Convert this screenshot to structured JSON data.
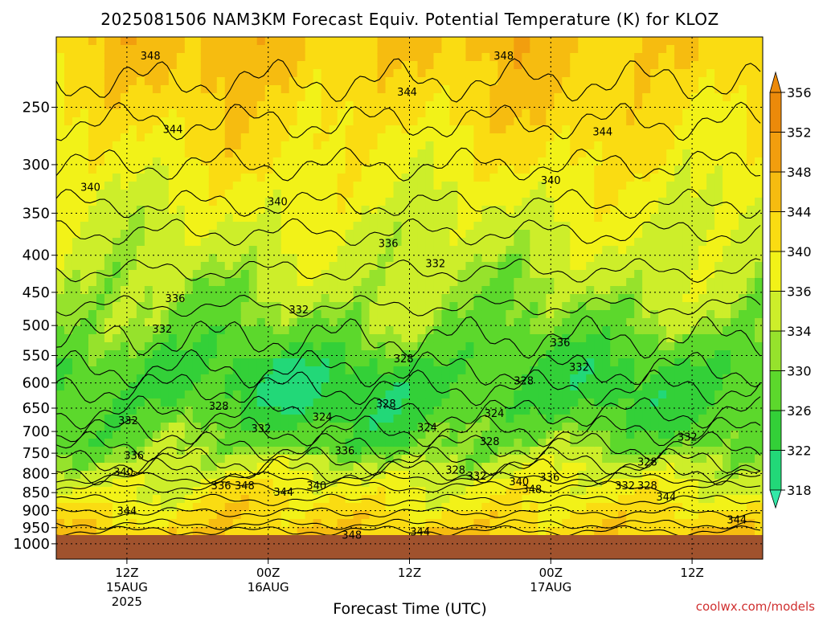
{
  "chart_data": {
    "type": "heatmap",
    "title": "2025081506 NAM3KM Forecast Equiv. Potential Temperature (K) for KLOZ",
    "xlabel": "Forecast Time (UTC)",
    "ylabel": "",
    "y_scale": "log",
    "y_inverted": true,
    "ylim": [
      1050,
      200
    ],
    "y_ticks": [
      250,
      300,
      350,
      400,
      450,
      500,
      550,
      600,
      650,
      700,
      750,
      800,
      850,
      900,
      950,
      1000
    ],
    "x_ticks": [
      {
        "hour": 6,
        "lines": [
          "12Z",
          "15AUG",
          "2025"
        ]
      },
      {
        "hour": 18,
        "lines": [
          "00Z",
          "16AUG"
        ]
      },
      {
        "hour": 30,
        "lines": [
          "12Z"
        ]
      },
      {
        "hour": 42,
        "lines": [
          "00Z",
          "17AUG"
        ]
      },
      {
        "hour": 54,
        "lines": [
          "12Z"
        ]
      }
    ],
    "xlim": [
      0,
      60
    ],
    "grid": true,
    "colorbar": {
      "levels": [
        318,
        322,
        326,
        330,
        334,
        336,
        340,
        344,
        348,
        352,
        356
      ],
      "colors": [
        "#33e8a8",
        "#22d878",
        "#33d038",
        "#5cd82c",
        "#96e22c",
        "#cdee2a",
        "#f2f218",
        "#fadc12",
        "#f6bc10",
        "#f29e0e",
        "#ec8a0a"
      ]
    },
    "contour_labels": [
      {
        "text": "348",
        "hour": 8.0,
        "p": 212
      },
      {
        "text": "348",
        "hour": 38.0,
        "p": 212
      },
      {
        "text": "344",
        "hour": 29.8,
        "p": 238
      },
      {
        "text": "344",
        "hour": 9.9,
        "p": 268
      },
      {
        "text": "344",
        "hour": 46.4,
        "p": 270
      },
      {
        "text": "340",
        "hour": 2.9,
        "p": 322
      },
      {
        "text": "340",
        "hour": 18.8,
        "p": 337
      },
      {
        "text": "340",
        "hour": 42.0,
        "p": 315
      },
      {
        "text": "336",
        "hour": 28.2,
        "p": 385
      },
      {
        "text": "336",
        "hour": 10.1,
        "p": 458
      },
      {
        "text": "336",
        "hour": 42.8,
        "p": 527
      },
      {
        "text": "332",
        "hour": 32.2,
        "p": 410
      },
      {
        "text": "332",
        "hour": 20.6,
        "p": 475
      },
      {
        "text": "332",
        "hour": 9.0,
        "p": 505
      },
      {
        "text": "332",
        "hour": 44.4,
        "p": 570
      },
      {
        "text": "332",
        "hour": 6.1,
        "p": 675
      },
      {
        "text": "332",
        "hour": 17.4,
        "p": 693
      },
      {
        "text": "332",
        "hour": 35.7,
        "p": 805
      },
      {
        "text": "332",
        "hour": 48.3,
        "p": 830
      },
      {
        "text": "332",
        "hour": 53.6,
        "p": 712
      },
      {
        "text": "328",
        "hour": 29.5,
        "p": 555
      },
      {
        "text": "328",
        "hour": 39.7,
        "p": 595
      },
      {
        "text": "328",
        "hour": 13.8,
        "p": 645
      },
      {
        "text": "328",
        "hour": 28.0,
        "p": 640
      },
      {
        "text": "328",
        "hour": 36.8,
        "p": 722
      },
      {
        "text": "328",
        "hour": 33.9,
        "p": 790
      },
      {
        "text": "328",
        "hour": 50.2,
        "p": 770
      },
      {
        "text": "328",
        "hour": 50.2,
        "p": 830
      },
      {
        "text": "324",
        "hour": 22.6,
        "p": 668
      },
      {
        "text": "324",
        "hour": 31.5,
        "p": 690
      },
      {
        "text": "324",
        "hour": 37.2,
        "p": 660
      },
      {
        "text": "340",
        "hour": 5.7,
        "p": 795
      },
      {
        "text": "340",
        "hour": 22.1,
        "p": 830
      },
      {
        "text": "340",
        "hour": 39.3,
        "p": 820
      },
      {
        "text": "336",
        "hour": 6.6,
        "p": 755
      },
      {
        "text": "336",
        "hour": 24.5,
        "p": 743
      },
      {
        "text": "336",
        "hour": 14.0,
        "p": 830
      },
      {
        "text": "336",
        "hour": 41.9,
        "p": 808
      },
      {
        "text": "348",
        "hour": 16.0,
        "p": 830
      },
      {
        "text": "348",
        "hour": 40.4,
        "p": 840
      },
      {
        "text": "344",
        "hour": 19.3,
        "p": 848
      },
      {
        "text": "344",
        "hour": 6.0,
        "p": 900
      },
      {
        "text": "344",
        "hour": 51.8,
        "p": 860
      },
      {
        "text": "344",
        "hour": 57.8,
        "p": 925
      },
      {
        "text": "348",
        "hour": 25.1,
        "p": 972
      },
      {
        "text": "344",
        "hour": 30.9,
        "p": 962
      }
    ]
  },
  "footer": {
    "credit": "coolwx.com/models"
  }
}
